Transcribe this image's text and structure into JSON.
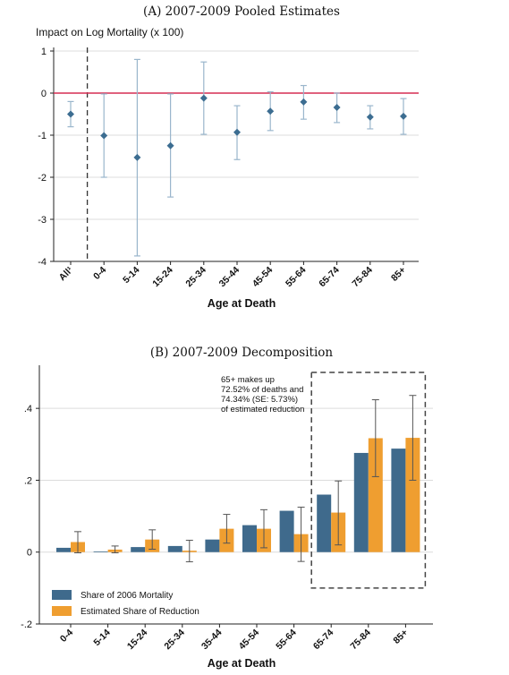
{
  "chart_data": [
    {
      "type": "scatter",
      "title": "(A) 2007-2009 Pooled Estimates",
      "ylabel": "Impact on Log Mortality (x 100)",
      "xlabel": "Age at Death",
      "categories": [
        "All¹",
        "0-4",
        "5-14",
        "15-24",
        "25-34",
        "35-44",
        "45-54",
        "55-64",
        "65-74",
        "75-84",
        "85+"
      ],
      "estimates": [
        -0.5,
        -1.01,
        -1.53,
        -1.25,
        -0.12,
        -0.93,
        -0.43,
        -0.21,
        -0.34,
        -0.57,
        -0.55
      ],
      "ci_low": [
        -0.8,
        -2.0,
        -3.87,
        -2.47,
        -0.98,
        -1.58,
        -0.89,
        -0.62,
        -0.7,
        -0.85,
        -0.98
      ],
      "ci_high": [
        -0.2,
        -0.02,
        0.8,
        -0.02,
        0.74,
        -0.3,
        0.03,
        0.18,
        0.0,
        -0.3,
        -0.13
      ],
      "ylim": [
        -4,
        1
      ],
      "yticks": [
        1,
        0,
        -1,
        -2,
        -3,
        -4
      ],
      "reference_line": 0,
      "reference_line_color": "#d62d52",
      "marker_color": "#3c6d91",
      "ci_color": "#9ab6cc",
      "separator_after_index": 0
    },
    {
      "type": "bar",
      "title": "(B) 2007-2009 Decomposition",
      "xlabel": "Age at Death",
      "categories": [
        "0-4",
        "5-14",
        "15-24",
        "25-34",
        "35-44",
        "45-54",
        "55-64",
        "65-74",
        "75-84",
        "85+"
      ],
      "ylim": [
        -0.2,
        0.52
      ],
      "yticks": [
        -0.2,
        0,
        0.2,
        0.4
      ],
      "ytick_labels": [
        "-.2",
        "0",
        ".2",
        ".4"
      ],
      "series": [
        {
          "name": "Share of 2006 Mortality",
          "color": "#3f6a8c",
          "values": [
            0.012,
            0.002,
            0.014,
            0.017,
            0.035,
            0.075,
            0.115,
            0.16,
            0.276,
            0.288
          ]
        },
        {
          "name": "Estimated Share of Reduction",
          "color": "#ef9e30",
          "values": [
            0.028,
            0.007,
            0.035,
            0.004,
            0.065,
            0.065,
            0.05,
            0.11,
            0.317,
            0.318
          ],
          "ci_low": [
            -0.002,
            -0.002,
            0.008,
            -0.027,
            0.025,
            0.012,
            -0.026,
            0.02,
            0.21,
            0.2
          ],
          "ci_high": [
            0.057,
            0.017,
            0.062,
            0.033,
            0.105,
            0.118,
            0.125,
            0.198,
            0.424,
            0.436
          ]
        }
      ],
      "annotation": {
        "lines": [
          "65+ makes up",
          "72.52% of deaths and",
          "74.34% (SE:  5.73%)",
          "of estimated reduction"
        ],
        "box_from_category": "65-74",
        "box_to_category": "85+",
        "box_ylim": [
          -0.1,
          0.5
        ]
      },
      "legend": {
        "position": "bottom-left"
      }
    }
  ]
}
